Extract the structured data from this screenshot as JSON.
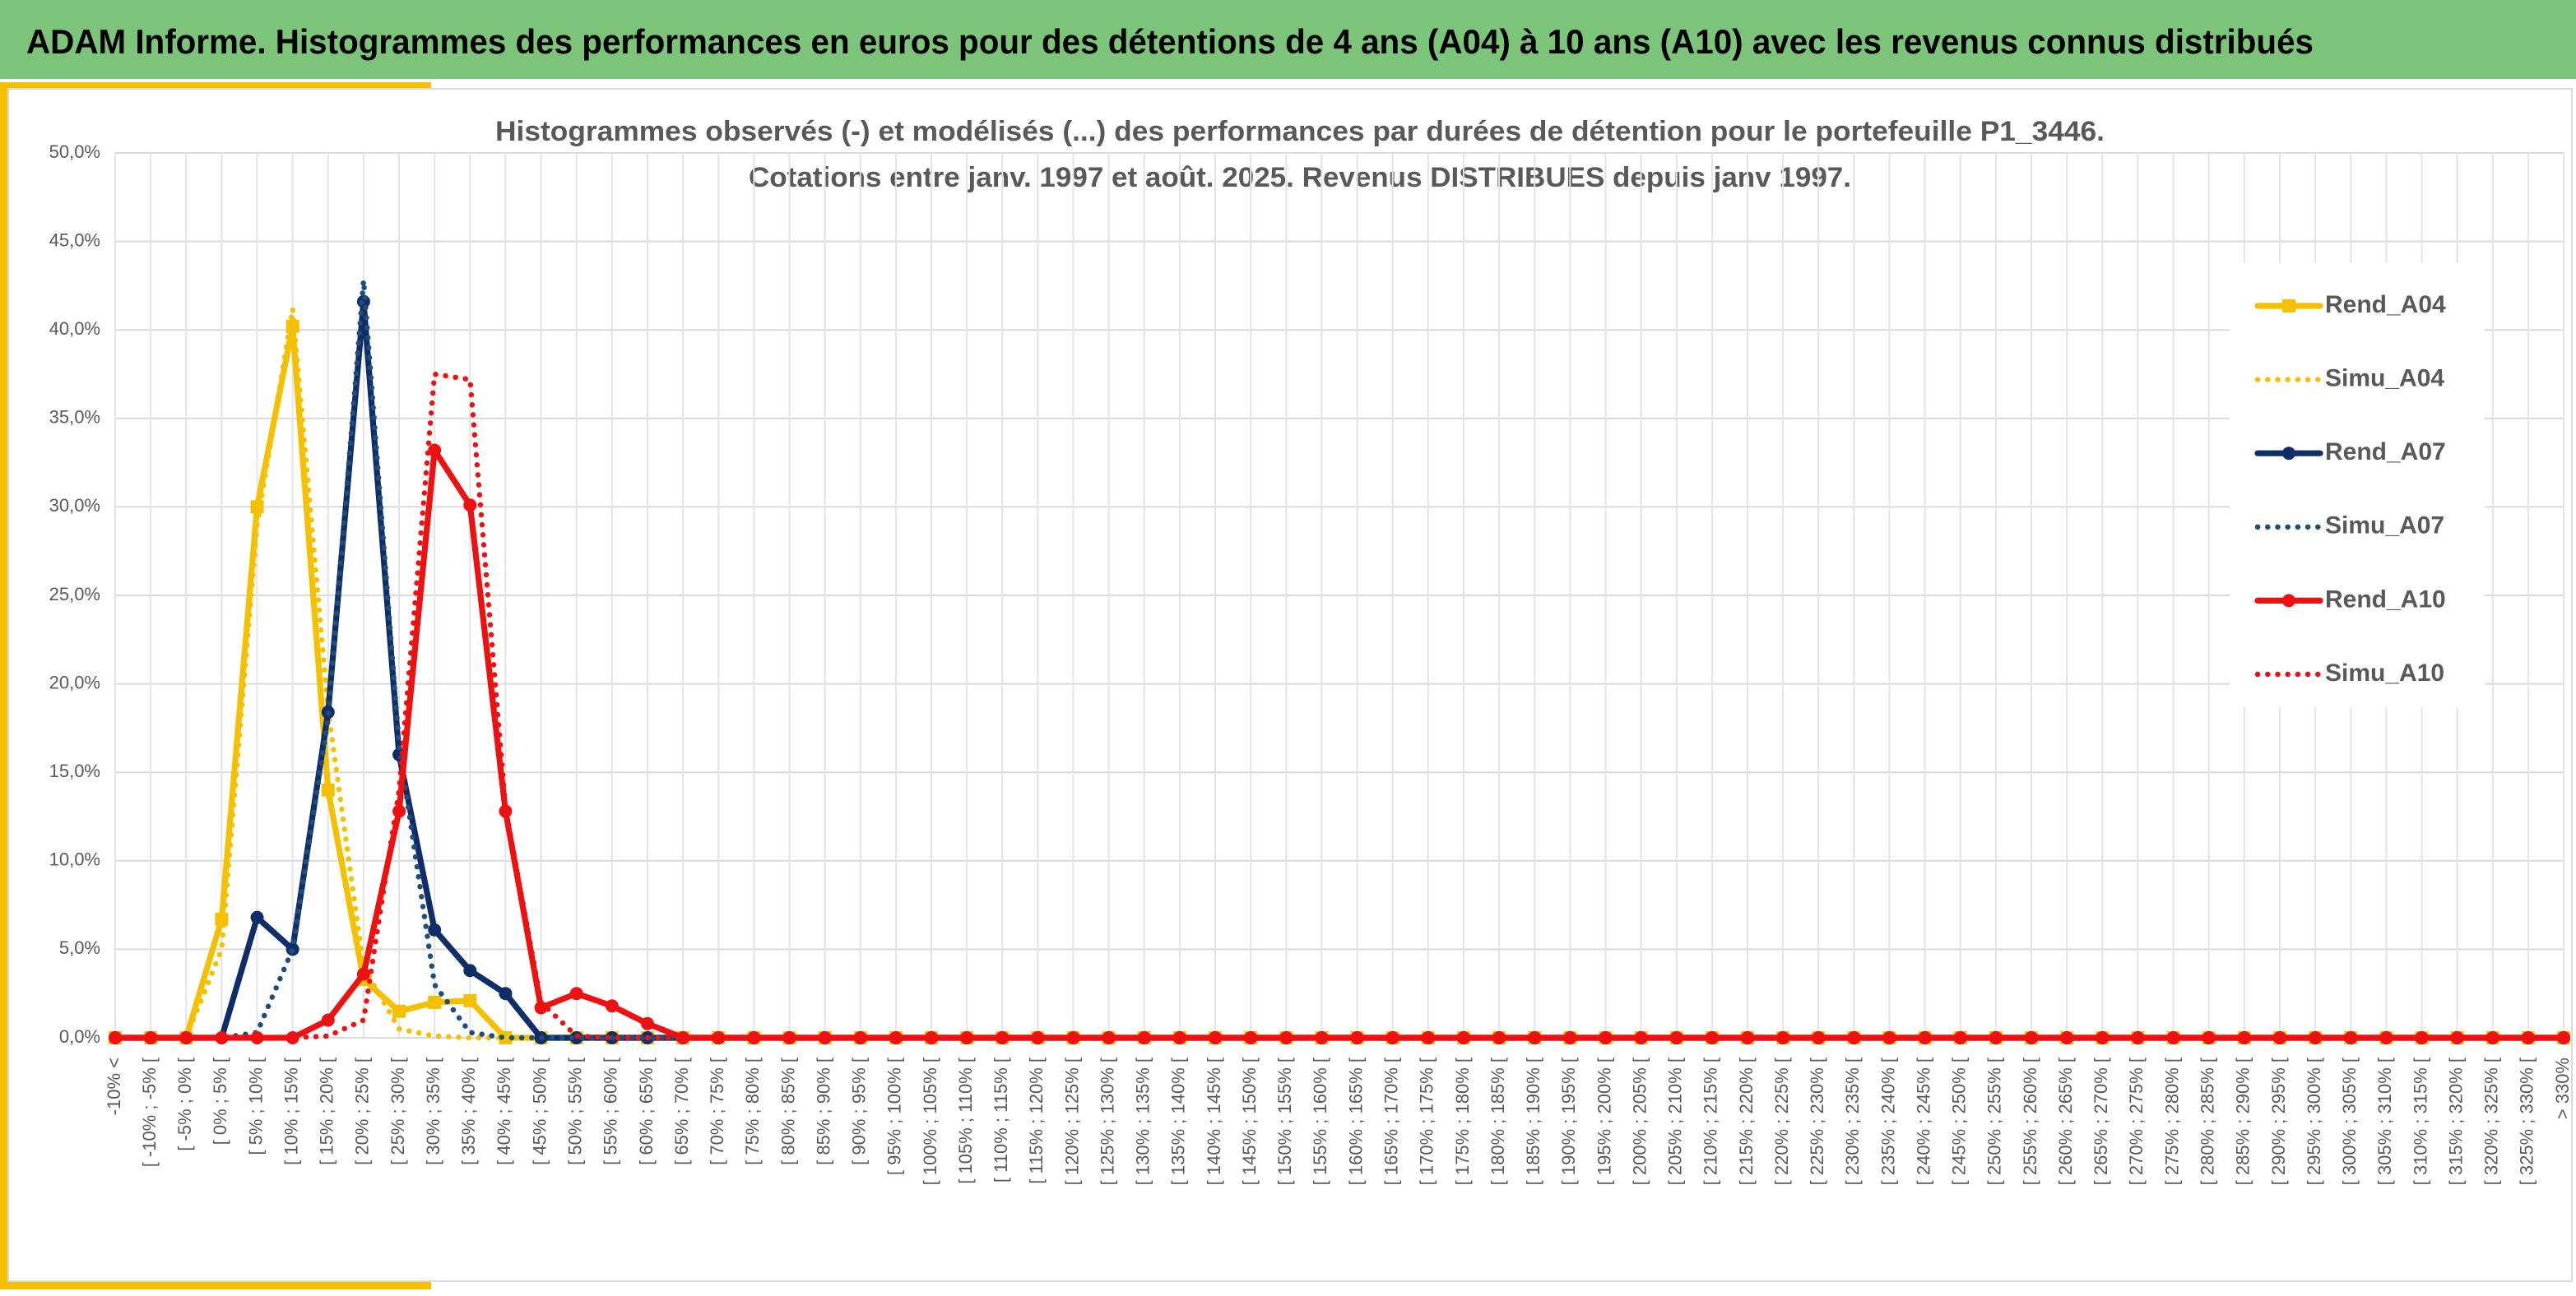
{
  "header": {
    "title": "ADAM Informe. Histogrammes des performances en euros pour des détentions de 4 ans (A04) à 10 ans (A10) avec les revenus connus distribués"
  },
  "chart_data": {
    "type": "line",
    "title": "Histogrammes observés (-) et modélisés (...) des performances par durées de détention pour le portefeuille P1_3446.",
    "subtitle": "Cotations entre janv. 1997 et août. 2025. Revenus DISTRIBUES depuis janv 1997.",
    "categories": [
      "-10% <",
      "[ -10% ; -5% [",
      "[ -5% ; 0% [",
      "[ 0% ; 5% [",
      "[ 5% ; 10% [",
      "[ 10% ; 15% [",
      "[ 15% ; 20% [",
      "[ 20% ; 25% [",
      "[ 25% ; 30% [",
      "[ 30% ; 35% [",
      "[ 35% ; 40% [",
      "[ 40% ; 45% [",
      "[ 45% ; 50% [",
      "[ 50% ; 55% [",
      "[ 55% ; 60% [",
      "[ 60% ; 65% [",
      "[ 65% ; 70% [",
      "[ 70% ; 75% [",
      "[ 75% ; 80% [",
      "[ 80% ; 85% [",
      "[ 85% ; 90% [",
      "[ 90% ; 95% [",
      "[ 95% ; 100% [",
      "[ 100% ; 105% [",
      "[ 105% ; 110% [",
      "[ 110% ; 115% [",
      "[ 115% ; 120% [",
      "[ 120% ; 125% [",
      "[ 125% ; 130% [",
      "[ 130% ; 135% [",
      "[ 135% ; 140% [",
      "[ 140% ; 145% [",
      "[ 145% ; 150% [",
      "[ 150% ; 155% [",
      "[ 155% ; 160% [",
      "[ 160% ; 165% [",
      "[ 165% ; 170% [",
      "[ 170% ; 175% [",
      "[ 175% ; 180% [",
      "[ 180% ; 185% [",
      "[ 185% ; 190% [",
      "[ 190% ; 195% [",
      "[ 195% ; 200% [",
      "[ 200% ; 205% [",
      "[ 205% ; 210% [",
      "[ 210% ; 215% [",
      "[ 215% ; 220% [",
      "[ 220% ; 225% [",
      "[ 225% ; 230% [",
      "[ 230% ; 235% [",
      "[ 235% ; 240% [",
      "[ 240% ; 245% [",
      "[ 245% ; 250% [",
      "[ 250% ; 255% [",
      "[ 255% ; 260% [",
      "[ 260% ; 265% [",
      "[ 265% ; 270% [",
      "[ 270% ; 275% [",
      "[ 275% ; 280% [",
      "[ 280% ; 285% [",
      "[ 285% ; 290% [",
      "[ 290% ; 295% [",
      "[ 295% ; 300% [",
      "[ 300% ; 305% [",
      "[ 305% ; 310% [",
      "[ 310% ; 315% [",
      "[ 315% ; 320% [",
      "[ 320% ; 325% [",
      "[ 325% ; 330% [",
      "> 330%"
    ],
    "series": [
      {
        "name": "Rend_A04",
        "color": "#f5c000",
        "dash": "solid",
        "marker": "square",
        "values": [
          0,
          0,
          0,
          6.7,
          30,
          40.2,
          14,
          3.3,
          1.5,
          2,
          2.1,
          0,
          0,
          0,
          0,
          0,
          0,
          0,
          0,
          0,
          0,
          0,
          0,
          0,
          0,
          0,
          0,
          0,
          0,
          0,
          0,
          0,
          0,
          0,
          0,
          0,
          0,
          0,
          0,
          0,
          0,
          0,
          0,
          0,
          0,
          0,
          0,
          0,
          0,
          0,
          0,
          0,
          0,
          0,
          0,
          0,
          0,
          0,
          0,
          0,
          0,
          0,
          0,
          0,
          0,
          0,
          0,
          0,
          0,
          0
        ]
      },
      {
        "name": "Simu_A04",
        "color": "#f5c000",
        "dash": "dotted",
        "marker": "none",
        "values": [
          0,
          0,
          0,
          5,
          29,
          41.2,
          18.5,
          4,
          0.5,
          0.1,
          0,
          0,
          0,
          0,
          0,
          0,
          0,
          0,
          0,
          0,
          0,
          0,
          0,
          0,
          0,
          0,
          0,
          0,
          0,
          0,
          0,
          0,
          0,
          0,
          0,
          0,
          0,
          0,
          0,
          0,
          0,
          0,
          0,
          0,
          0,
          0,
          0,
          0,
          0,
          0,
          0,
          0,
          0,
          0,
          0,
          0,
          0,
          0,
          0,
          0,
          0,
          0,
          0,
          0,
          0,
          0,
          0,
          0,
          0,
          0
        ]
      },
      {
        "name": "Rend_A07",
        "color": "#0f2d69",
        "dash": "solid",
        "marker": "circle",
        "values": [
          0,
          0,
          0,
          0,
          6.8,
          5,
          18.4,
          41.6,
          16,
          6.1,
          3.8,
          2.5,
          0,
          0,
          0,
          0,
          0,
          0,
          0,
          0,
          0,
          0,
          0,
          0,
          0,
          0,
          0,
          0,
          0,
          0,
          0,
          0,
          0,
          0,
          0,
          0,
          0,
          0,
          0,
          0,
          0,
          0,
          0,
          0,
          0,
          0,
          0,
          0,
          0,
          0,
          0,
          0,
          0,
          0,
          0,
          0,
          0,
          0,
          0,
          0,
          0,
          0,
          0,
          0,
          0,
          0,
          0,
          0,
          0,
          0
        ]
      },
      {
        "name": "Simu_A07",
        "color": "#1f4e79",
        "dash": "dotted",
        "marker": "none",
        "values": [
          0,
          0,
          0,
          0,
          0.3,
          5,
          18,
          42.8,
          16.5,
          3,
          0.3,
          0,
          0,
          0,
          0,
          0,
          0,
          0,
          0,
          0,
          0,
          0,
          0,
          0,
          0,
          0,
          0,
          0,
          0,
          0,
          0,
          0,
          0,
          0,
          0,
          0,
          0,
          0,
          0,
          0,
          0,
          0,
          0,
          0,
          0,
          0,
          0,
          0,
          0,
          0,
          0,
          0,
          0,
          0,
          0,
          0,
          0,
          0,
          0,
          0,
          0,
          0,
          0,
          0,
          0,
          0,
          0,
          0,
          0,
          0
        ]
      },
      {
        "name": "Rend_A10",
        "color": "#ee1111",
        "dash": "solid",
        "marker": "circle",
        "values": [
          0,
          0,
          0,
          0,
          0,
          0,
          1,
          3.6,
          12.8,
          33.2,
          30.1,
          12.8,
          1.7,
          2.5,
          1.8,
          0.8,
          0,
          0,
          0,
          0,
          0,
          0,
          0,
          0,
          0,
          0,
          0,
          0,
          0,
          0,
          0,
          0,
          0,
          0,
          0,
          0,
          0,
          0,
          0,
          0,
          0,
          0,
          0,
          0,
          0,
          0,
          0,
          0,
          0,
          0,
          0,
          0,
          0,
          0,
          0,
          0,
          0,
          0,
          0,
          0,
          0,
          0,
          0,
          0,
          0,
          0,
          0,
          0,
          0,
          0
        ]
      },
      {
        "name": "Simu_A10",
        "color": "#ee1111",
        "dash": "dotted",
        "marker": "none",
        "values": [
          0,
          0,
          0,
          0,
          0,
          0,
          0.1,
          1,
          14,
          37.5,
          37.2,
          13,
          2,
          0.1,
          0,
          0,
          0,
          0,
          0,
          0,
          0,
          0,
          0,
          0,
          0,
          0,
          0,
          0,
          0,
          0,
          0,
          0,
          0,
          0,
          0,
          0,
          0,
          0,
          0,
          0,
          0,
          0,
          0,
          0,
          0,
          0,
          0,
          0,
          0,
          0,
          0,
          0,
          0,
          0,
          0,
          0,
          0,
          0,
          0,
          0,
          0,
          0,
          0,
          0,
          0,
          0,
          0,
          0,
          0,
          0
        ]
      }
    ],
    "ylim": [
      0,
      50
    ],
    "yticks": [
      {
        "value": 0,
        "label": "0,0%"
      },
      {
        "value": 5,
        "label": "5,0%"
      },
      {
        "value": 10,
        "label": "10,0%"
      },
      {
        "value": 15,
        "label": "15,0%"
      },
      {
        "value": 20,
        "label": "20,0%"
      },
      {
        "value": 25,
        "label": "25,0%"
      },
      {
        "value": 30,
        "label": "30,0%"
      },
      {
        "value": 35,
        "label": "35,0%"
      },
      {
        "value": 40,
        "label": "40,0%"
      },
      {
        "value": 45,
        "label": "45,0%"
      },
      {
        "value": 50,
        "label": "50,0%"
      }
    ],
    "grid": true,
    "legend": "right"
  }
}
